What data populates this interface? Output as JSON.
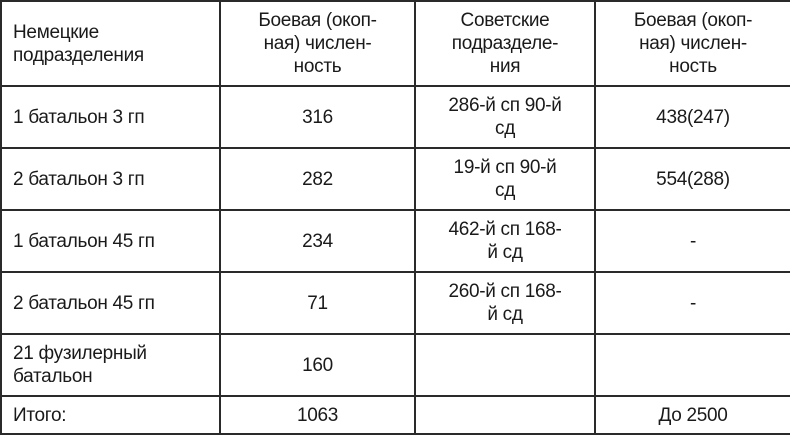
{
  "headers": [
    "Немецкие\nподразделения",
    "Боевая (окоп-\nная) числен-\nность",
    "Советские\nподразделе-\nния",
    "Боевая (окоп-\nная) числен-\nность"
  ],
  "rows": [
    [
      "1 батальон 3 гп",
      "316",
      "286-й сп 90-й\nсд",
      "438(247)"
    ],
    [
      "2 батальон 3 гп",
      "282",
      "19-й сп 90-й\nсд",
      "554(288)"
    ],
    [
      "1 батальон 45 гп",
      "234",
      "462-й сп 168-\nй сд",
      "-"
    ],
    [
      "2 батальон 45 гп",
      "71",
      "260-й сп 168-\nй сд",
      "-"
    ],
    [
      "21 фузилерный\nбатальон",
      "160",
      "",
      ""
    ]
  ],
  "total": [
    "Итого:",
    "1063",
    "",
    "До 2500"
  ]
}
